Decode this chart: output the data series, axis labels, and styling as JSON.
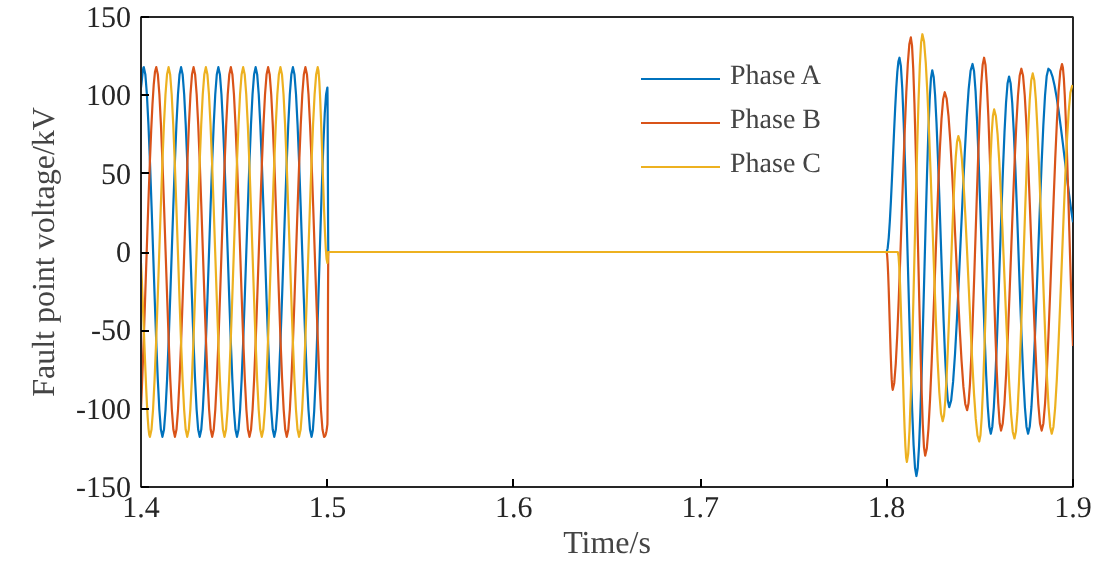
{
  "chart_data": {
    "type": "line",
    "xlabel": "Time/s",
    "ylabel": "Fault point voltage/kV",
    "xlim": [
      1.4,
      1.9
    ],
    "ylim": [
      -150,
      150
    ],
    "xticks": [
      1.4,
      1.5,
      1.6,
      1.7,
      1.8,
      1.9
    ],
    "yticks": [
      -150,
      -100,
      -50,
      0,
      50,
      100,
      150
    ],
    "grid": false,
    "legend": "top right",
    "line_style": "solid",
    "marker": "none",
    "series": [
      {
        "name": "Phase A",
        "color": "#0072bd",
        "x": [
          1.4,
          1.4015,
          1.4115,
          1.4215,
          1.4315,
          1.4415,
          1.4515,
          1.4615,
          1.4715,
          1.4815,
          1.4915,
          1.5,
          1.5005,
          1.8,
          1.8069,
          1.816,
          1.8245,
          1.8336,
          1.8461,
          1.8559,
          1.8657,
          1.8759,
          1.8868,
          1.9
        ],
        "values": [
          105,
          118,
          -118,
          118,
          -118,
          118,
          -118,
          118,
          -118,
          118,
          -118,
          105,
          0,
          0,
          124,
          -143,
          116,
          -99,
          120,
          -116,
          112,
          -116,
          117,
          19
        ]
      },
      {
        "name": "Phase B",
        "color": "#d95319",
        "x": [
          1.4,
          1.4082,
          1.4182,
          1.4282,
          1.4382,
          1.4482,
          1.4582,
          1.4682,
          1.4782,
          1.4882,
          1.4982,
          1.5,
          1.5005,
          1.8,
          1.8033,
          1.813,
          1.8207,
          1.8312,
          1.8432,
          1.8523,
          1.8614,
          1.8723,
          1.8832,
          1.8941,
          1.9
        ],
        "values": [
          -100,
          118,
          -118,
          118,
          -118,
          118,
          -118,
          118,
          -118,
          118,
          -118,
          -110,
          0,
          0,
          -88,
          137,
          -130,
          102,
          -101,
          124,
          -114,
          117,
          -114,
          120,
          -60
        ]
      },
      {
        "name": "Phase C",
        "color": "#edb120",
        "x": [
          1.4,
          1.4048,
          1.4148,
          1.4248,
          1.4348,
          1.4448,
          1.4548,
          1.4648,
          1.4748,
          1.4848,
          1.4948,
          1.5,
          1.5005,
          1.8,
          1.806,
          1.8109,
          1.8192,
          1.8301,
          1.8385,
          1.8497,
          1.8577,
          1.8686,
          1.8784,
          1.8886,
          1.8995,
          1.9
        ],
        "values": [
          -7,
          -118,
          118,
          -118,
          118,
          -118,
          118,
          -118,
          118,
          -118,
          118,
          -7,
          0,
          0,
          0,
          -134,
          139,
          -108,
          74,
          -121,
          91,
          -119,
          114,
          -116,
          106,
          105
        ]
      }
    ]
  }
}
